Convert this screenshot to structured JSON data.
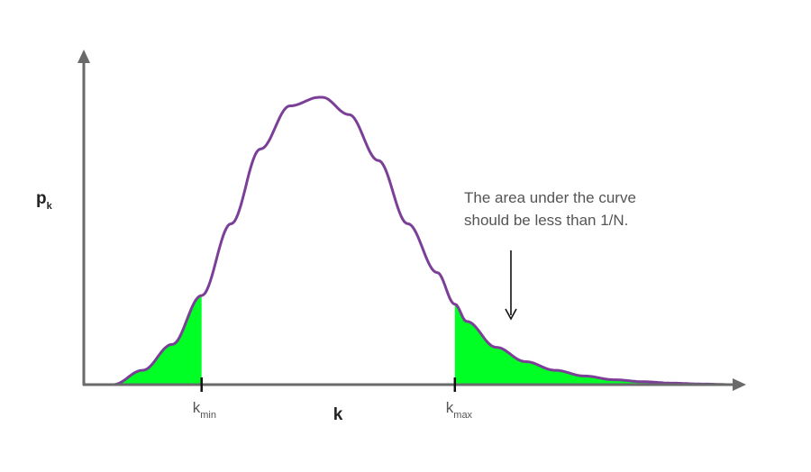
{
  "chart_data": {
    "type": "area",
    "title": "",
    "xlabel": "k",
    "ylabel_main": "p",
    "ylabel_sub": "k",
    "ticks": [
      {
        "main": "k",
        "sub": "min",
        "x": 2.0
      },
      {
        "main": "k",
        "sub": "max",
        "x": 6.3
      }
    ],
    "xlim": [
      0,
      11
    ],
    "ylim": [
      0,
      1
    ],
    "curve": {
      "shape": "skewed-bell",
      "peak_x": 4.05,
      "peak_y": 1.0,
      "x": [
        0,
        0.5,
        1.0,
        1.5,
        2.0,
        2.5,
        3.0,
        3.5,
        4.0,
        4.05,
        4.5,
        5.0,
        5.5,
        6.0,
        6.3,
        6.5,
        7.0,
        7.5,
        8.0,
        8.5,
        9.0,
        9.5,
        10.0,
        10.5,
        11.0
      ],
      "y": [
        0.0,
        0.0,
        0.05,
        0.14,
        0.31,
        0.56,
        0.82,
        0.97,
        1.0,
        1.0,
        0.94,
        0.78,
        0.56,
        0.39,
        0.28,
        0.22,
        0.13,
        0.08,
        0.05,
        0.03,
        0.017,
        0.01,
        0.005,
        0.002,
        0.0
      ]
    },
    "shaded_regions": [
      {
        "from": 0,
        "to": 2.0
      },
      {
        "from": 6.3,
        "to": 11
      }
    ],
    "annotation": {
      "lines": [
        "The area under the curve",
        "should be less than 1/N."
      ]
    },
    "colors": {
      "curve": "#7b3f98",
      "fill": "#00ff24",
      "axis": "#6a6a6a",
      "text": "#555555",
      "label": "#222222"
    }
  }
}
